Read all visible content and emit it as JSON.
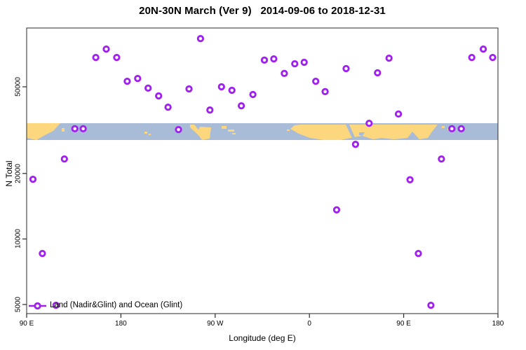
{
  "title": "20N-30N March (Ver 9)   2014-09-06 to 2018-12-31",
  "legend": {
    "label": "Land (Nadir&Glint) and Ocean (Glint)",
    "marker": "open-circle-on-line"
  },
  "axes": {
    "x": {
      "label": "Longitude (deg E)",
      "tick_labels": [
        "90 E",
        "180",
        "90 W",
        "0",
        "90 E",
        "180"
      ]
    },
    "y": {
      "label": "N Total",
      "tick_labels": [
        "5000",
        "10000",
        "20000",
        "50000"
      ]
    }
  },
  "colors": {
    "marker": "#A020F0",
    "land": "#FCD77E",
    "ocean": "#A9BCD7",
    "frame": "#2b2b2b",
    "text": "#000000"
  },
  "chart_data": {
    "type": "scatter",
    "title": "20N-30N March (Ver 9)   2014-09-06 to 2018-12-31",
    "xlabel": "Longitude (deg E)",
    "ylabel": "N Total",
    "x_axis_note": "Axis spans 450 deg of longitude starting at 90E going eastward; t = axis degrees (90..540), longitude = ((t+180) mod 360)-180",
    "x_ticks_t": [
      90,
      180,
      270,
      360,
      450,
      540
    ],
    "x_tick_labels": [
      "90 E",
      "180",
      "90 W",
      "0",
      "90 E",
      "180"
    ],
    "y_scale": "log10",
    "y_ticks": [
      5000,
      10000,
      20000,
      50000
    ],
    "ylim": [
      4400,
      94000
    ],
    "grid": false,
    "legend_position": "bottom-left-inside",
    "map_band": {
      "description": "world coastline strip for 20N-30N drawn across plot",
      "n_range": [
        28500,
        34000
      ],
      "land_color": "#FCD77E",
      "ocean_color": "#A9BCD7"
    },
    "series": [
      {
        "name": "Land (Nadir&Glint) and Ocean (Glint)",
        "marker": "open-circle",
        "color": "#A020F0",
        "points_format": "[t_axis_deg, N_total]",
        "points": [
          [
            156,
            68200
          ],
          [
            166,
            74500
          ],
          [
            176,
            68200
          ],
          [
            186,
            53000
          ],
          [
            196,
            54600
          ],
          [
            206,
            49300
          ],
          [
            216,
            45400
          ],
          [
            225,
            40300
          ],
          [
            245,
            48900
          ],
          [
            256,
            83300
          ],
          [
            265,
            39100
          ],
          [
            276,
            50000
          ],
          [
            286,
            48200
          ],
          [
            295,
            40900
          ],
          [
            306,
            46100
          ],
          [
            317,
            66300
          ],
          [
            326,
            67200
          ],
          [
            336,
            57600
          ],
          [
            346,
            63800
          ],
          [
            355,
            64800
          ],
          [
            366,
            53000
          ],
          [
            375,
            47500
          ],
          [
            395,
            60600
          ],
          [
            404,
            27200
          ],
          [
            417,
            34000
          ],
          [
            425,
            58000
          ],
          [
            436,
            67700
          ],
          [
            445,
            37500
          ],
          [
            456,
            18700
          ],
          [
            464,
            8580
          ],
          [
            476,
            4960
          ],
          [
            486,
            23300
          ],
          [
            496,
            32100
          ],
          [
            505,
            32100
          ],
          [
            515,
            68200
          ],
          [
            526,
            74500
          ],
          [
            535,
            68200
          ],
          [
            136,
            32100
          ],
          [
            144,
            32100
          ],
          [
            235,
            31800
          ],
          [
            126,
            23300
          ],
          [
            96,
            18800
          ],
          [
            105,
            8580
          ],
          [
            118,
            4960
          ],
          [
            386,
            13600
          ]
        ]
      }
    ]
  }
}
